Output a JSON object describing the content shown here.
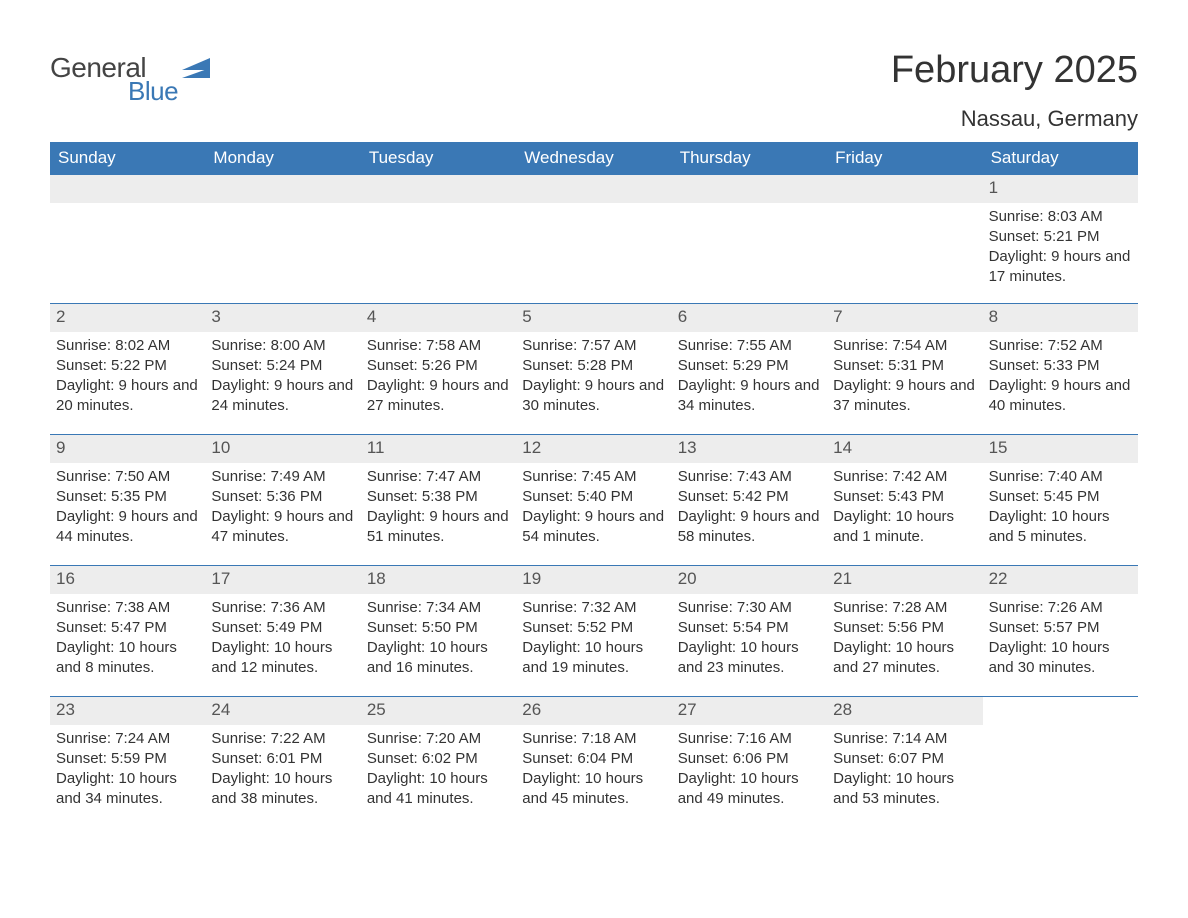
{
  "brand": {
    "word1": "General",
    "word2": "Blue",
    "word1_color": "#444444",
    "word2_color": "#3a78b5",
    "flag_color": "#3a78b5"
  },
  "title": "February 2025",
  "location": "Nassau, Germany",
  "colors": {
    "header_bg": "#3a78b5",
    "header_text": "#ffffff",
    "daynum_bg": "#ededed",
    "divider": "#3a78b5",
    "text": "#333333",
    "page_bg": "#ffffff"
  },
  "typography": {
    "title_fontsize": 38,
    "location_fontsize": 22,
    "weekday_fontsize": 17,
    "daynum_fontsize": 17,
    "body_fontsize": 15,
    "font_family": "Arial"
  },
  "layout": {
    "columns": 7,
    "start_day_index": 6,
    "days_in_month": 28
  },
  "weekdays": [
    "Sunday",
    "Monday",
    "Tuesday",
    "Wednesday",
    "Thursday",
    "Friday",
    "Saturday"
  ],
  "weeks": [
    [
      null,
      null,
      null,
      null,
      null,
      null,
      {
        "n": "1",
        "sr": "Sunrise: 8:03 AM",
        "ss": "Sunset: 5:21 PM",
        "dl": "Daylight: 9 hours and 17 minutes."
      }
    ],
    [
      {
        "n": "2",
        "sr": "Sunrise: 8:02 AM",
        "ss": "Sunset: 5:22 PM",
        "dl": "Daylight: 9 hours and 20 minutes."
      },
      {
        "n": "3",
        "sr": "Sunrise: 8:00 AM",
        "ss": "Sunset: 5:24 PM",
        "dl": "Daylight: 9 hours and 24 minutes."
      },
      {
        "n": "4",
        "sr": "Sunrise: 7:58 AM",
        "ss": "Sunset: 5:26 PM",
        "dl": "Daylight: 9 hours and 27 minutes."
      },
      {
        "n": "5",
        "sr": "Sunrise: 7:57 AM",
        "ss": "Sunset: 5:28 PM",
        "dl": "Daylight: 9 hours and 30 minutes."
      },
      {
        "n": "6",
        "sr": "Sunrise: 7:55 AM",
        "ss": "Sunset: 5:29 PM",
        "dl": "Daylight: 9 hours and 34 minutes."
      },
      {
        "n": "7",
        "sr": "Sunrise: 7:54 AM",
        "ss": "Sunset: 5:31 PM",
        "dl": "Daylight: 9 hours and 37 minutes."
      },
      {
        "n": "8",
        "sr": "Sunrise: 7:52 AM",
        "ss": "Sunset: 5:33 PM",
        "dl": "Daylight: 9 hours and 40 minutes."
      }
    ],
    [
      {
        "n": "9",
        "sr": "Sunrise: 7:50 AM",
        "ss": "Sunset: 5:35 PM",
        "dl": "Daylight: 9 hours and 44 minutes."
      },
      {
        "n": "10",
        "sr": "Sunrise: 7:49 AM",
        "ss": "Sunset: 5:36 PM",
        "dl": "Daylight: 9 hours and 47 minutes."
      },
      {
        "n": "11",
        "sr": "Sunrise: 7:47 AM",
        "ss": "Sunset: 5:38 PM",
        "dl": "Daylight: 9 hours and 51 minutes."
      },
      {
        "n": "12",
        "sr": "Sunrise: 7:45 AM",
        "ss": "Sunset: 5:40 PM",
        "dl": "Daylight: 9 hours and 54 minutes."
      },
      {
        "n": "13",
        "sr": "Sunrise: 7:43 AM",
        "ss": "Sunset: 5:42 PM",
        "dl": "Daylight: 9 hours and 58 minutes."
      },
      {
        "n": "14",
        "sr": "Sunrise: 7:42 AM",
        "ss": "Sunset: 5:43 PM",
        "dl": "Daylight: 10 hours and 1 minute."
      },
      {
        "n": "15",
        "sr": "Sunrise: 7:40 AM",
        "ss": "Sunset: 5:45 PM",
        "dl": "Daylight: 10 hours and 5 minutes."
      }
    ],
    [
      {
        "n": "16",
        "sr": "Sunrise: 7:38 AM",
        "ss": "Sunset: 5:47 PM",
        "dl": "Daylight: 10 hours and 8 minutes."
      },
      {
        "n": "17",
        "sr": "Sunrise: 7:36 AM",
        "ss": "Sunset: 5:49 PM",
        "dl": "Daylight: 10 hours and 12 minutes."
      },
      {
        "n": "18",
        "sr": "Sunrise: 7:34 AM",
        "ss": "Sunset: 5:50 PM",
        "dl": "Daylight: 10 hours and 16 minutes."
      },
      {
        "n": "19",
        "sr": "Sunrise: 7:32 AM",
        "ss": "Sunset: 5:52 PM",
        "dl": "Daylight: 10 hours and 19 minutes."
      },
      {
        "n": "20",
        "sr": "Sunrise: 7:30 AM",
        "ss": "Sunset: 5:54 PM",
        "dl": "Daylight: 10 hours and 23 minutes."
      },
      {
        "n": "21",
        "sr": "Sunrise: 7:28 AM",
        "ss": "Sunset: 5:56 PM",
        "dl": "Daylight: 10 hours and 27 minutes."
      },
      {
        "n": "22",
        "sr": "Sunrise: 7:26 AM",
        "ss": "Sunset: 5:57 PM",
        "dl": "Daylight: 10 hours and 30 minutes."
      }
    ],
    [
      {
        "n": "23",
        "sr": "Sunrise: 7:24 AM",
        "ss": "Sunset: 5:59 PM",
        "dl": "Daylight: 10 hours and 34 minutes."
      },
      {
        "n": "24",
        "sr": "Sunrise: 7:22 AM",
        "ss": "Sunset: 6:01 PM",
        "dl": "Daylight: 10 hours and 38 minutes."
      },
      {
        "n": "25",
        "sr": "Sunrise: 7:20 AM",
        "ss": "Sunset: 6:02 PM",
        "dl": "Daylight: 10 hours and 41 minutes."
      },
      {
        "n": "26",
        "sr": "Sunrise: 7:18 AM",
        "ss": "Sunset: 6:04 PM",
        "dl": "Daylight: 10 hours and 45 minutes."
      },
      {
        "n": "27",
        "sr": "Sunrise: 7:16 AM",
        "ss": "Sunset: 6:06 PM",
        "dl": "Daylight: 10 hours and 49 minutes."
      },
      {
        "n": "28",
        "sr": "Sunrise: 7:14 AM",
        "ss": "Sunset: 6:07 PM",
        "dl": "Daylight: 10 hours and 53 minutes."
      },
      null
    ]
  ]
}
